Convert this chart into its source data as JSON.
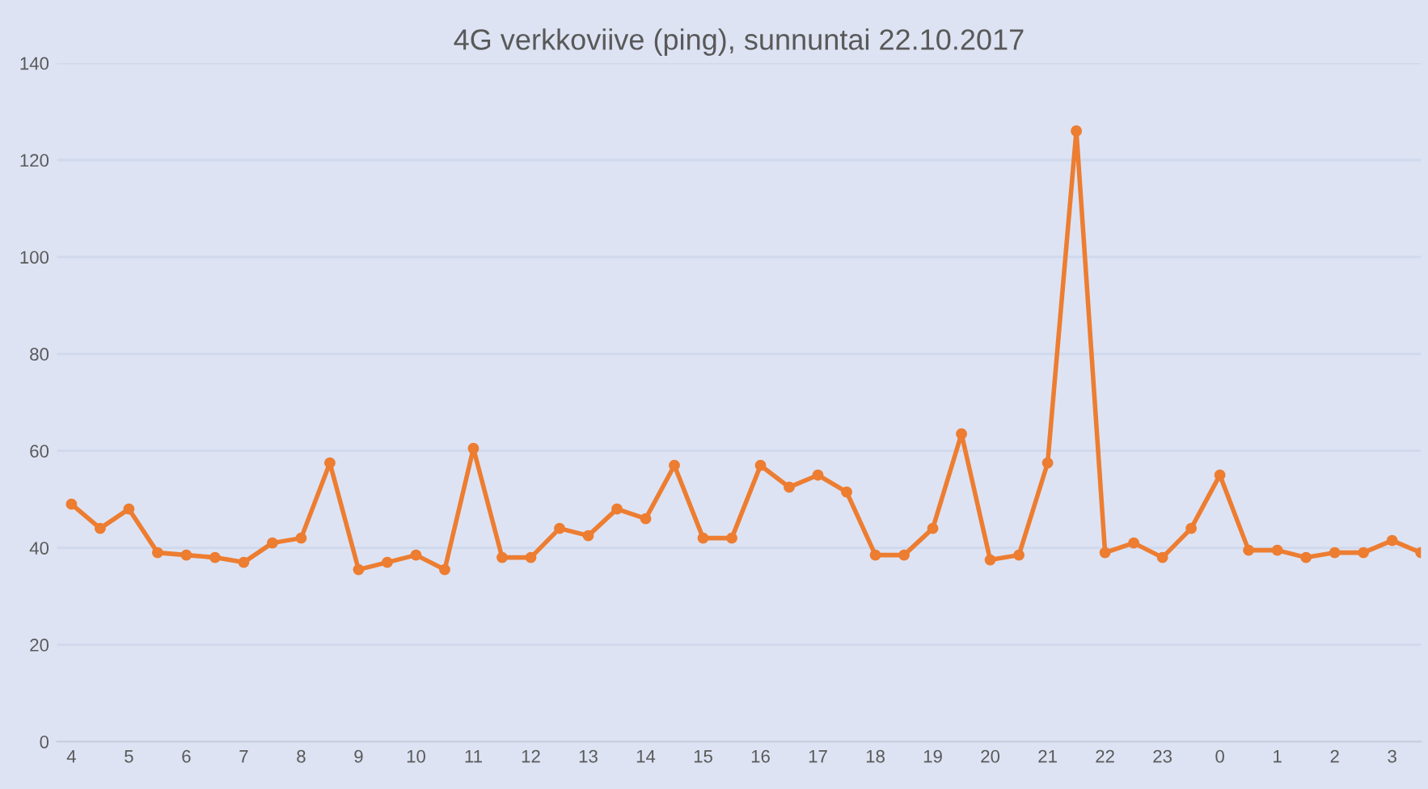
{
  "chart_data": {
    "type": "line",
    "title": "4G verkkoviive (ping), sunnuntai 22.10.2017",
    "categories": [
      "4",
      null,
      "5",
      null,
      "6",
      null,
      "7",
      null,
      "8",
      null,
      "9",
      null,
      "10",
      null,
      "11",
      null,
      "12",
      null,
      "13",
      null,
      "14",
      null,
      "15",
      null,
      "16",
      null,
      "17",
      null,
      "18",
      null,
      "19",
      null,
      "20",
      null,
      "21",
      null,
      "22",
      null,
      "23",
      null,
      "0",
      null,
      "1",
      null,
      "2",
      null,
      "3",
      null
    ],
    "series": [
      {
        "color": "#ed7d31",
        "values": [
          49,
          44,
          48,
          39,
          38.5,
          38,
          37,
          41,
          42,
          57.5,
          35.5,
          37,
          38.5,
          35.5,
          60.5,
          38,
          38,
          44,
          42.5,
          48,
          46,
          57,
          42,
          42,
          57,
          52.5,
          55,
          51.5,
          38.5,
          38.5,
          44,
          63.5,
          37.5,
          38.5,
          57.5,
          126,
          39,
          41,
          38,
          44,
          55,
          39.5,
          39.5,
          38,
          39,
          39,
          41.5,
          39
        ]
      }
    ],
    "ylim": [
      0,
      140
    ],
    "yticks": [
      0,
      20,
      40,
      60,
      80,
      100,
      120,
      140
    ],
    "grid": "y",
    "marker": "circle",
    "line_style": "solid",
    "legend": false
  }
}
